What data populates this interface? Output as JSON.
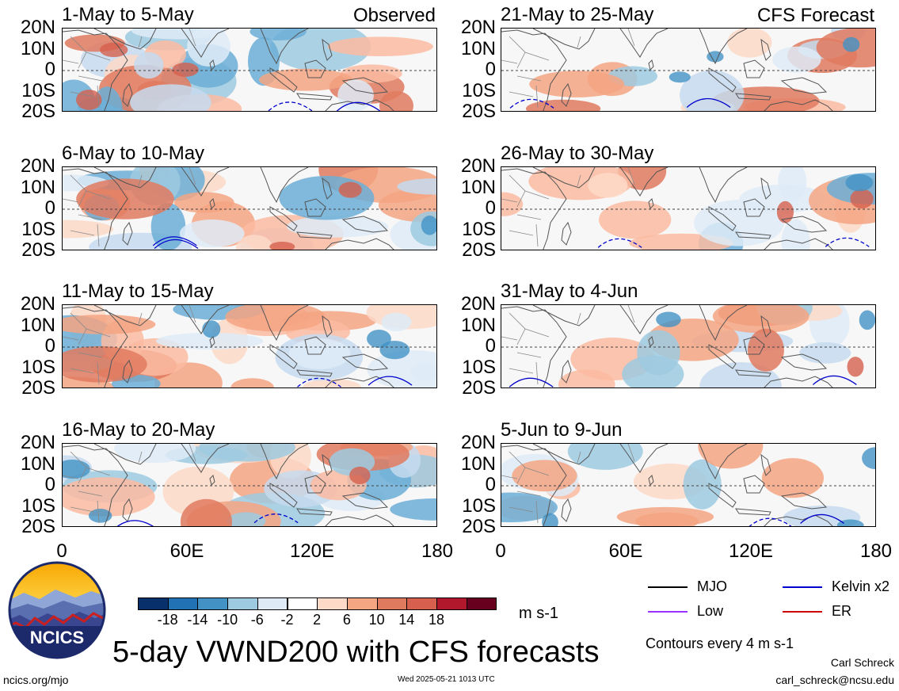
{
  "panels": [
    {
      "title": "1-May to 5-May",
      "tag": "Observed",
      "col": 0,
      "row": 0
    },
    {
      "title": "6-May to 10-May",
      "tag": "",
      "col": 0,
      "row": 1
    },
    {
      "title": "11-May to 15-May",
      "tag": "",
      "col": 0,
      "row": 2
    },
    {
      "title": "16-May to 20-May",
      "tag": "",
      "col": 0,
      "row": 3
    },
    {
      "title": "21-May to 25-May",
      "tag": "CFS Forecast",
      "col": 1,
      "row": 0
    },
    {
      "title": "26-May to 30-May",
      "tag": "",
      "col": 1,
      "row": 1
    },
    {
      "title": "31-May to 4-Jun",
      "tag": "",
      "col": 1,
      "row": 2
    },
    {
      "title": "5-Jun to 9-Jun",
      "tag": "",
      "col": 1,
      "row": 3
    }
  ],
  "lat_labels": [
    "20N",
    "10N",
    "0",
    "10S",
    "20S"
  ],
  "lon_labels": [
    "0",
    "60E",
    "120E",
    "180"
  ],
  "colorbar": {
    "colors": [
      "#08306b",
      "#2171b5",
      "#4292c6",
      "#9ecae1",
      "#deebf7",
      "#ffffff",
      "#fdd9c8",
      "#f4a582",
      "#e07a5f",
      "#d6604d",
      "#b2182b",
      "#67001f"
    ],
    "ticks": [
      "-18",
      "-14",
      "-10",
      "-6",
      "-2",
      "2",
      "6",
      "10",
      "14",
      "18"
    ],
    "unit": "m s-1"
  },
  "legend": [
    {
      "label": "MJO",
      "color": "#000000"
    },
    {
      "label": "Kelvin x2",
      "color": "#0000cc"
    },
    {
      "label": "Low",
      "color": "#9933ff"
    },
    {
      "label": "ER",
      "color": "#cc0000"
    }
  ],
  "contour_note": "Contours every 4 m s-1",
  "main_title": "5-day VWND200 with CFS forecasts",
  "logo_text": "NCICS",
  "footer": {
    "url": "ncics.org/mjo",
    "timestamp": "Wed 2025-05-21 1013 UTC",
    "author": "Carl Schreck",
    "email": "carl_schreck@ncsu.edu"
  }
}
